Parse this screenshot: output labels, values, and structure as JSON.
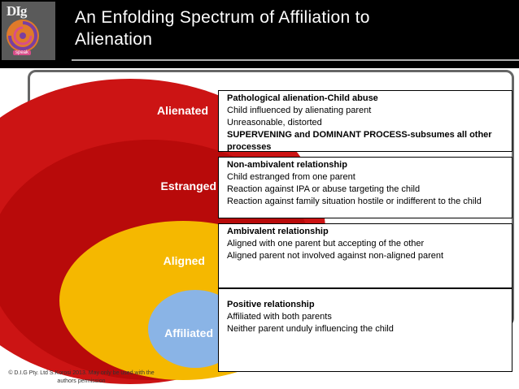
{
  "header": {
    "logo_text": "DIg",
    "logo_tag": "speak",
    "title_line1": "An Enfolding Spectrum of Affiliation to",
    "title_line2": "Alienation"
  },
  "levels": [
    {
      "label": "Alienated",
      "color": "#cc1414"
    },
    {
      "label": "Estranged",
      "color": "#b80a0a"
    },
    {
      "label": "Aligned",
      "color": "#f5b800"
    },
    {
      "label": "Affiliated",
      "color": "#8ab4e6"
    }
  ],
  "boxes": [
    {
      "heading": "Pathological alienation-Child abuse",
      "lines": [
        "Child influenced by alienating parent",
        "Unreasonable, distorted"
      ],
      "highlight": "SUPERVENING and DOMINANT PROCESS-subsumes all other processes"
    },
    {
      "heading": "Non-ambivalent relationship",
      "lines": [
        "Child estranged from one parent",
        "Reaction against IPA or abuse targeting the child",
        "Reaction against family situation hostile or indifferent to the child"
      ]
    },
    {
      "heading": "Ambivalent relationship",
      "lines": [
        "Aligned with one parent but accepting of the other",
        "Aligned parent not involved against non-aligned parent"
      ]
    },
    {
      "heading": "Positive relationship",
      "lines": [
        "Affiliated with both parents",
        "Neither parent unduly influencing the child"
      ]
    }
  ],
  "footer": "© D.I.G Pty. Ltd S.Korosi 2013. May only be used with the authors permission"
}
